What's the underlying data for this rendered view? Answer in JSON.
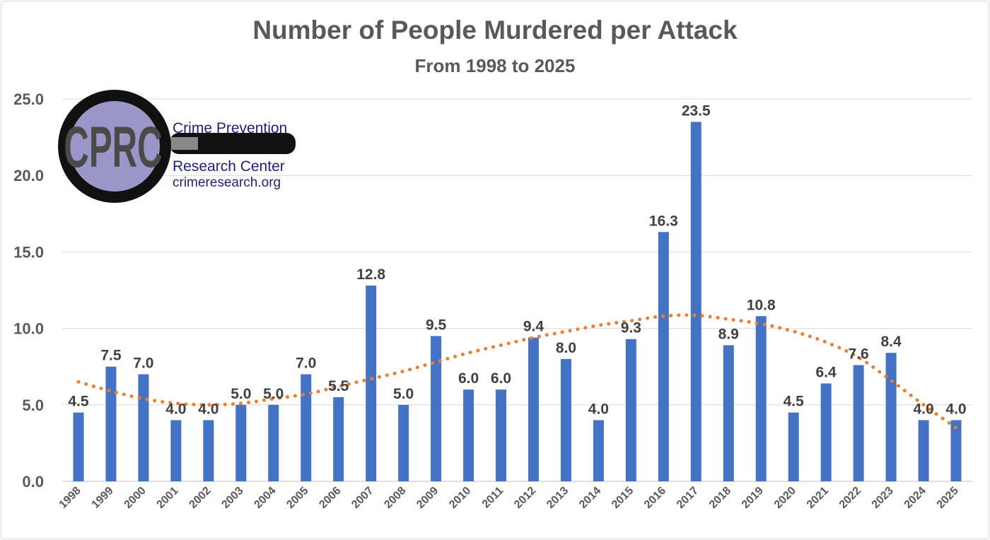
{
  "chart_data": {
    "type": "bar",
    "title": "Number of People Murdered per Attack",
    "subtitle": "From 1998 to 2025",
    "xlabel": "",
    "ylabel": "",
    "ylim": [
      0,
      25
    ],
    "yticks": [
      "0.0",
      "5.0",
      "10.0",
      "15.0",
      "20.0",
      "25.0"
    ],
    "grid": true,
    "categories": [
      "1998",
      "1999",
      "2000",
      "2001",
      "2002",
      "2003",
      "2004",
      "2005",
      "2006",
      "2007",
      "2008",
      "2009",
      "2010",
      "2011",
      "2012",
      "2013",
      "2014",
      "2015",
      "2016",
      "2017",
      "2018",
      "2019",
      "2020",
      "2021",
      "2022",
      "2023",
      "2024",
      "2025"
    ],
    "values": [
      4.5,
      7.5,
      7.0,
      4.0,
      4.0,
      5.0,
      5.0,
      7.0,
      5.5,
      12.8,
      5.0,
      9.5,
      6.0,
      6.0,
      9.4,
      8.0,
      4.0,
      9.3,
      16.3,
      23.5,
      8.9,
      10.8,
      4.5,
      6.4,
      7.6,
      8.4,
      4.0,
      4.0
    ],
    "data_labels": [
      "4.5",
      "7.5",
      "7.0",
      "4.0",
      "4.0",
      "5.0",
      "5.0",
      "7.0",
      "5.5",
      "12.8",
      "5.0",
      "9.5",
      "6.0",
      "6.0",
      "9.4",
      "8.0",
      "4.0",
      "9.3",
      "16.3",
      "23.5",
      "8.9",
      "10.8",
      "4.5",
      "6.4",
      "7.6",
      "8.4",
      "4.0",
      "4.0"
    ],
    "trendline": {
      "style": "dotted polynomial",
      "values": [
        6.5,
        5.9,
        5.4,
        5.1,
        5.0,
        5.1,
        5.4,
        5.7,
        6.2,
        6.7,
        7.2,
        7.8,
        8.4,
        8.9,
        9.4,
        9.8,
        10.2,
        10.5,
        10.8,
        10.85,
        10.6,
        10.3,
        9.8,
        9.1,
        8.1,
        6.6,
        5.0,
        3.5
      ]
    },
    "colors": {
      "bar": "#4472c4",
      "trendline": "#ed7d31",
      "text": "#595959",
      "grid": "#d9d9d9"
    }
  },
  "logo": {
    "lens_text": "CPRC",
    "line1": "Crime Prevention",
    "line2": "Research Center",
    "line3": "crimeresearch.org"
  }
}
